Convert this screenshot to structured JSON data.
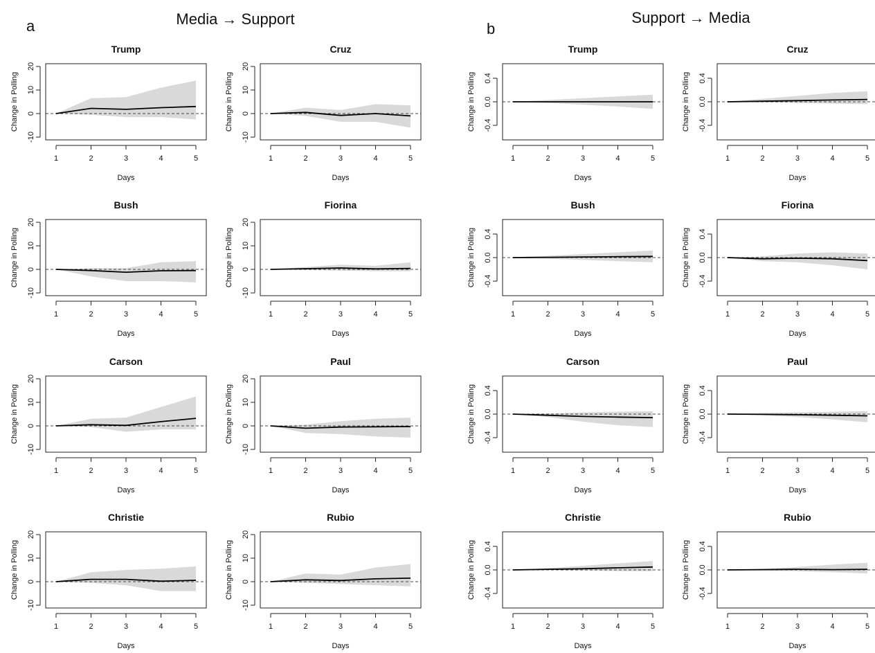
{
  "figure": {
    "panel_a": {
      "letter": "a",
      "title": "Media → Support"
    },
    "panel_b": {
      "letter": "b",
      "title": "Support → Media"
    }
  },
  "chart_data": [
    {
      "type": "line",
      "title": "Trump",
      "panel": "a",
      "xlabel": "Days",
      "ylabel": "Change in Polling",
      "x": [
        1,
        2,
        3,
        4,
        5
      ],
      "xlim": [
        1,
        5
      ],
      "ylim": [
        -10,
        20
      ],
      "xticks": [
        "1",
        "2",
        "3",
        "4",
        "5"
      ],
      "yticks": [
        "-10",
        "0",
        "10",
        "20"
      ],
      "baseline": 0,
      "series": [
        {
          "name": "",
          "values": [
            0,
            2.2,
            1.8,
            2.5,
            3.0
          ]
        }
      ],
      "lower": [
        0,
        -0.5,
        -1.5,
        -1.5,
        -2.5
      ],
      "upper": [
        0,
        6.5,
        7.0,
        11.0,
        14.0
      ]
    },
    {
      "type": "line",
      "title": "Cruz",
      "panel": "a",
      "xlabel": "Days",
      "ylabel": "Change in Polling",
      "x": [
        1,
        2,
        3,
        4,
        5
      ],
      "xlim": [
        1,
        5
      ],
      "ylim": [
        -10,
        20
      ],
      "xticks": [
        "1",
        "2",
        "3",
        "4",
        "5"
      ],
      "yticks": [
        "-10",
        "0",
        "10",
        "20"
      ],
      "baseline": 0,
      "series": [
        {
          "name": "",
          "values": [
            0,
            0.5,
            -0.8,
            0,
            -1.0
          ]
        }
      ],
      "lower": [
        0,
        -1.0,
        -3.5,
        -3.5,
        -6.0
      ],
      "upper": [
        0,
        2.5,
        1.5,
        4.0,
        3.5
      ]
    },
    {
      "type": "line",
      "title": "Bush",
      "panel": "a",
      "xlabel": "Days",
      "ylabel": "Change in Polling",
      "x": [
        1,
        2,
        3,
        4,
        5
      ],
      "xlim": [
        1,
        5
      ],
      "ylim": [
        -10,
        20
      ],
      "xticks": [
        "1",
        "2",
        "3",
        "4",
        "5"
      ],
      "yticks": [
        "-10",
        "0",
        "10",
        "20"
      ],
      "baseline": 0,
      "series": [
        {
          "name": "",
          "values": [
            0,
            -0.5,
            -1.2,
            -0.6,
            -0.5
          ]
        }
      ],
      "lower": [
        0,
        -3.0,
        -5.0,
        -5.0,
        -5.5
      ],
      "upper": [
        0,
        0.5,
        0.5,
        3.0,
        3.5
      ]
    },
    {
      "type": "line",
      "title": "Fiorina",
      "panel": "a",
      "xlabel": "Days",
      "ylabel": "Change in Polling",
      "x": [
        1,
        2,
        3,
        4,
        5
      ],
      "xlim": [
        1,
        5
      ],
      "ylim": [
        -10,
        20
      ],
      "xticks": [
        "1",
        "2",
        "3",
        "4",
        "5"
      ],
      "yticks": [
        "-10",
        "0",
        "10",
        "20"
      ],
      "baseline": 0,
      "series": [
        {
          "name": "",
          "values": [
            0,
            0.3,
            0.6,
            0.2,
            0.4
          ]
        }
      ],
      "lower": [
        0,
        -0.3,
        -0.5,
        -0.8,
        -0.8
      ],
      "upper": [
        0,
        1.0,
        2.0,
        1.5,
        3.0
      ]
    },
    {
      "type": "line",
      "title": "Carson",
      "panel": "a",
      "xlabel": "Days",
      "ylabel": "Change in Polling",
      "x": [
        1,
        2,
        3,
        4,
        5
      ],
      "xlim": [
        1,
        5
      ],
      "ylim": [
        -10,
        20
      ],
      "xticks": [
        "1",
        "2",
        "3",
        "4",
        "5"
      ],
      "yticks": [
        "-10",
        "0",
        "10",
        "20"
      ],
      "baseline": 0,
      "series": [
        {
          "name": "",
          "values": [
            0,
            0.5,
            0.2,
            1.8,
            3.2
          ]
        }
      ],
      "lower": [
        0,
        -0.5,
        -2.5,
        -1.5,
        -1.5
      ],
      "upper": [
        0,
        3.0,
        3.5,
        8.0,
        12.5
      ]
    },
    {
      "type": "line",
      "title": "Paul",
      "panel": "a",
      "xlabel": "Days",
      "ylabel": "Change in Polling",
      "x": [
        1,
        2,
        3,
        4,
        5
      ],
      "xlim": [
        1,
        5
      ],
      "ylim": [
        -10,
        20
      ],
      "xticks": [
        "1",
        "2",
        "3",
        "4",
        "5"
      ],
      "yticks": [
        "-10",
        "0",
        "10",
        "20"
      ],
      "baseline": 0,
      "series": [
        {
          "name": "",
          "values": [
            0,
            -1.0,
            -0.5,
            -0.4,
            -0.3
          ]
        }
      ],
      "lower": [
        0,
        -3.0,
        -3.5,
        -4.5,
        -5.0
      ],
      "upper": [
        0,
        0.5,
        2.0,
        3.0,
        3.5
      ]
    },
    {
      "type": "line",
      "title": "Christie",
      "panel": "a",
      "xlabel": "Days",
      "ylabel": "Change in Polling",
      "x": [
        1,
        2,
        3,
        4,
        5
      ],
      "xlim": [
        1,
        5
      ],
      "ylim": [
        -10,
        20
      ],
      "xticks": [
        "1",
        "2",
        "3",
        "4",
        "5"
      ],
      "yticks": [
        "-10",
        "0",
        "10",
        "20"
      ],
      "baseline": 0,
      "series": [
        {
          "name": "",
          "values": [
            0,
            1.0,
            1.0,
            0.2,
            0.6
          ]
        }
      ],
      "lower": [
        0,
        -0.5,
        -1.5,
        -4.0,
        -4.0
      ],
      "upper": [
        0,
        4.0,
        5.0,
        5.5,
        6.5
      ]
    },
    {
      "type": "line",
      "title": "Rubio",
      "panel": "a",
      "xlabel": "Days",
      "ylabel": "Change in Polling",
      "x": [
        1,
        2,
        3,
        4,
        5
      ],
      "xlim": [
        1,
        5
      ],
      "ylim": [
        -10,
        20
      ],
      "xticks": [
        "1",
        "2",
        "3",
        "4",
        "5"
      ],
      "yticks": [
        "-10",
        "0",
        "10",
        "20"
      ],
      "baseline": 0,
      "series": [
        {
          "name": "",
          "values": [
            0,
            0.8,
            0.5,
            1.2,
            1.5
          ]
        }
      ],
      "lower": [
        0,
        -0.5,
        -1.0,
        -1.5,
        -2.0
      ],
      "upper": [
        0,
        3.5,
        3.0,
        6.0,
        7.5
      ]
    },
    {
      "type": "line",
      "title": "Trump",
      "panel": "b",
      "xlabel": "Days",
      "ylabel": "Change in Polling",
      "x": [
        1,
        2,
        3,
        4,
        5
      ],
      "xlim": [
        1,
        5
      ],
      "ylim": [
        -0.6,
        0.6
      ],
      "xticks": [
        "1",
        "2",
        "3",
        "4",
        "5"
      ],
      "yticks": [
        "-0.4",
        "0.0",
        "0.4"
      ],
      "baseline": 0,
      "series": [
        {
          "name": "",
          "values": [
            0,
            0,
            0,
            0,
            0
          ]
        }
      ],
      "lower": [
        0,
        -0.02,
        -0.05,
        -0.08,
        -0.12
      ],
      "upper": [
        0,
        0.03,
        0.06,
        0.09,
        0.12
      ]
    },
    {
      "type": "line",
      "title": "Cruz",
      "panel": "b",
      "xlabel": "Days",
      "ylabel": "Change in Polling",
      "x": [
        1,
        2,
        3,
        4,
        5
      ],
      "xlim": [
        1,
        5
      ],
      "ylim": [
        -0.6,
        0.6
      ],
      "xticks": [
        "1",
        "2",
        "3",
        "4",
        "5"
      ],
      "yticks": [
        "-0.4",
        "0.0",
        "0.4"
      ],
      "baseline": 0,
      "series": [
        {
          "name": "",
          "values": [
            0,
            0.01,
            0.02,
            0.03,
            0.04
          ]
        }
      ],
      "lower": [
        0,
        -0.01,
        -0.02,
        -0.03,
        -0.04
      ],
      "upper": [
        0,
        0.05,
        0.1,
        0.15,
        0.18
      ]
    },
    {
      "type": "line",
      "title": "Bush",
      "panel": "b",
      "xlabel": "Days",
      "ylabel": "Change in Polling",
      "x": [
        1,
        2,
        3,
        4,
        5
      ],
      "xlim": [
        1,
        5
      ],
      "ylim": [
        -0.6,
        0.6
      ],
      "xticks": [
        "1",
        "2",
        "3",
        "4",
        "5"
      ],
      "yticks": [
        "-0.4",
        "0.0",
        "0.4"
      ],
      "baseline": 0,
      "series": [
        {
          "name": "",
          "values": [
            0,
            0.005,
            0.01,
            0.015,
            0.02
          ]
        }
      ],
      "lower": [
        0,
        -0.02,
        -0.04,
        -0.06,
        -0.08
      ],
      "upper": [
        0,
        0.03,
        0.06,
        0.09,
        0.12
      ]
    },
    {
      "type": "line",
      "title": "Fiorina",
      "panel": "b",
      "xlabel": "Days",
      "ylabel": "Change in Polling",
      "x": [
        1,
        2,
        3,
        4,
        5
      ],
      "xlim": [
        1,
        5
      ],
      "ylim": [
        -0.6,
        0.6
      ],
      "xticks": [
        "1",
        "2",
        "3",
        "4",
        "5"
      ],
      "yticks": [
        "-0.4",
        "0.0",
        "0.4"
      ],
      "baseline": 0,
      "series": [
        {
          "name": "",
          "values": [
            0,
            -0.02,
            -0.01,
            -0.02,
            -0.05
          ]
        }
      ],
      "lower": [
        0,
        -0.06,
        -0.08,
        -0.13,
        -0.2
      ],
      "upper": [
        0,
        0.02,
        0.07,
        0.09,
        0.07
      ]
    },
    {
      "type": "line",
      "title": "Carson",
      "panel": "b",
      "xlabel": "Days",
      "ylabel": "Change in Polling",
      "x": [
        1,
        2,
        3,
        4,
        5
      ],
      "xlim": [
        1,
        5
      ],
      "ylim": [
        -0.6,
        0.6
      ],
      "xticks": [
        "1",
        "2",
        "3",
        "4",
        "5"
      ],
      "yticks": [
        "-0.4",
        "0.0",
        "0.4"
      ],
      "baseline": 0,
      "series": [
        {
          "name": "",
          "values": [
            0,
            -0.02,
            -0.04,
            -0.05,
            -0.06
          ]
        }
      ],
      "lower": [
        0,
        -0.05,
        -0.13,
        -0.19,
        -0.22
      ],
      "upper": [
        0,
        0.01,
        0.03,
        0.04,
        0.05
      ]
    },
    {
      "type": "line",
      "title": "Paul",
      "panel": "b",
      "xlabel": "Days",
      "ylabel": "Change in Polling",
      "x": [
        1,
        2,
        3,
        4,
        5
      ],
      "xlim": [
        1,
        5
      ],
      "ylim": [
        -0.6,
        0.6
      ],
      "xticks": [
        "1",
        "2",
        "3",
        "4",
        "5"
      ],
      "yticks": [
        "-0.4",
        "0.0",
        "0.4"
      ],
      "baseline": 0,
      "series": [
        {
          "name": "",
          "values": [
            0,
            -0.005,
            -0.01,
            -0.02,
            -0.03
          ]
        }
      ],
      "lower": [
        0,
        -0.02,
        -0.05,
        -0.09,
        -0.14
      ],
      "upper": [
        0,
        0.02,
        0.03,
        0.04,
        0.05
      ]
    },
    {
      "type": "line",
      "title": "Christie",
      "panel": "b",
      "xlabel": "Days",
      "ylabel": "Change in Polling",
      "x": [
        1,
        2,
        3,
        4,
        5
      ],
      "xlim": [
        1,
        5
      ],
      "ylim": [
        -0.6,
        0.6
      ],
      "xticks": [
        "1",
        "2",
        "3",
        "4",
        "5"
      ],
      "yticks": [
        "-0.4",
        "0.0",
        "0.4"
      ],
      "baseline": 0,
      "series": [
        {
          "name": "",
          "values": [
            0,
            0.01,
            0.02,
            0.035,
            0.05
          ]
        }
      ],
      "lower": [
        0,
        -0.005,
        -0.01,
        -0.02,
        -0.02
      ],
      "upper": [
        0,
        0.03,
        0.07,
        0.11,
        0.15
      ]
    },
    {
      "type": "line",
      "title": "Rubio",
      "panel": "b",
      "xlabel": "Days",
      "ylabel": "Change in Polling",
      "x": [
        1,
        2,
        3,
        4,
        5
      ],
      "xlim": [
        1,
        5
      ],
      "ylim": [
        -0.6,
        0.6
      ],
      "xticks": [
        "1",
        "2",
        "3",
        "4",
        "5"
      ],
      "yticks": [
        "-0.4",
        "0.0",
        "0.4"
      ],
      "baseline": 0,
      "series": [
        {
          "name": "",
          "values": [
            0,
            0.005,
            0.01,
            0.005,
            0.01
          ]
        }
      ],
      "lower": [
        0,
        -0.01,
        -0.02,
        -0.04,
        -0.06
      ],
      "upper": [
        0,
        0.02,
        0.05,
        0.09,
        0.12
      ]
    }
  ]
}
